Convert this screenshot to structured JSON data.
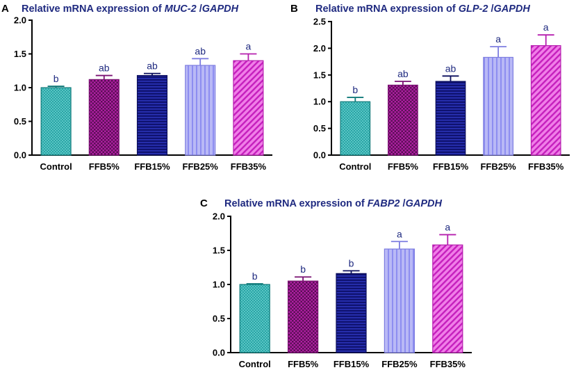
{
  "figure": {
    "panels": [
      {
        "letter": "A",
        "title_prefix": "Relative mRNA expression of ",
        "gene": "MUC-2",
        "separator": " /",
        "reference": "GAPDH"
      },
      {
        "letter": "B",
        "title_prefix": "Relative mRNA expression of ",
        "gene": "GLP-2",
        "separator": " /",
        "reference": "GAPDH"
      },
      {
        "letter": "C",
        "title_prefix": "Relative mRNA expression of ",
        "gene": "FABP2",
        "separator": " /",
        "reference": "GAPDH"
      }
    ]
  },
  "colors": {
    "Control": "#1fa0a0",
    "FFB5%": "#b01fa3",
    "FFB15%": "#161a87",
    "FFB25%": "#a3a3f2",
    "FFB35%": "#d83ad0",
    "title": "#1f2a80",
    "letters": "#1f2a80"
  },
  "chart_data": [
    {
      "type": "bar",
      "title": "Relative mRNA expression of MUC-2 /GAPDH",
      "categories": [
        "Control",
        "FFB5%",
        "FFB15%",
        "FFB25%",
        "FFB35%"
      ],
      "values": [
        1.0,
        1.12,
        1.18,
        1.33,
        1.4
      ],
      "errors": [
        0.02,
        0.06,
        0.03,
        0.1,
        0.1
      ],
      "significance": [
        "b",
        "ab",
        "ab",
        "ab",
        "a"
      ],
      "ylim": [
        0,
        2.0
      ],
      "yticks": [
        "0.0",
        "0.5",
        "1.0",
        "1.5",
        "2.0"
      ],
      "xlabel": "",
      "ylabel": ""
    },
    {
      "type": "bar",
      "title": "Relative mRNA expression of GLP-2 /GAPDH",
      "categories": [
        "Control",
        "FFB5%",
        "FFB15%",
        "FFB25%",
        "FFB35%"
      ],
      "values": [
        1.0,
        1.31,
        1.38,
        1.83,
        2.05
      ],
      "errors": [
        0.08,
        0.07,
        0.1,
        0.2,
        0.2
      ],
      "significance": [
        "b",
        "ab",
        "ab",
        "a",
        "a"
      ],
      "ylim": [
        0,
        2.5
      ],
      "yticks": [
        "0.0",
        "0.5",
        "1.0",
        "1.5",
        "2.0",
        "2.5"
      ],
      "xlabel": "",
      "ylabel": ""
    },
    {
      "type": "bar",
      "title": "Relative mRNA expression of FABP2 /GAPDH",
      "categories": [
        "Control",
        "FFB5%",
        "FFB15%",
        "FFB25%",
        "FFB35%"
      ],
      "values": [
        1.0,
        1.05,
        1.16,
        1.52,
        1.58
      ],
      "errors": [
        0.01,
        0.06,
        0.04,
        0.11,
        0.15
      ],
      "significance": [
        "b",
        "b",
        "b",
        "a",
        "a"
      ],
      "ylim": [
        0,
        2.0
      ],
      "yticks": [
        "0.0",
        "0.5",
        "1.0",
        "1.5",
        "2.0"
      ],
      "xlabel": "",
      "ylabel": ""
    }
  ]
}
